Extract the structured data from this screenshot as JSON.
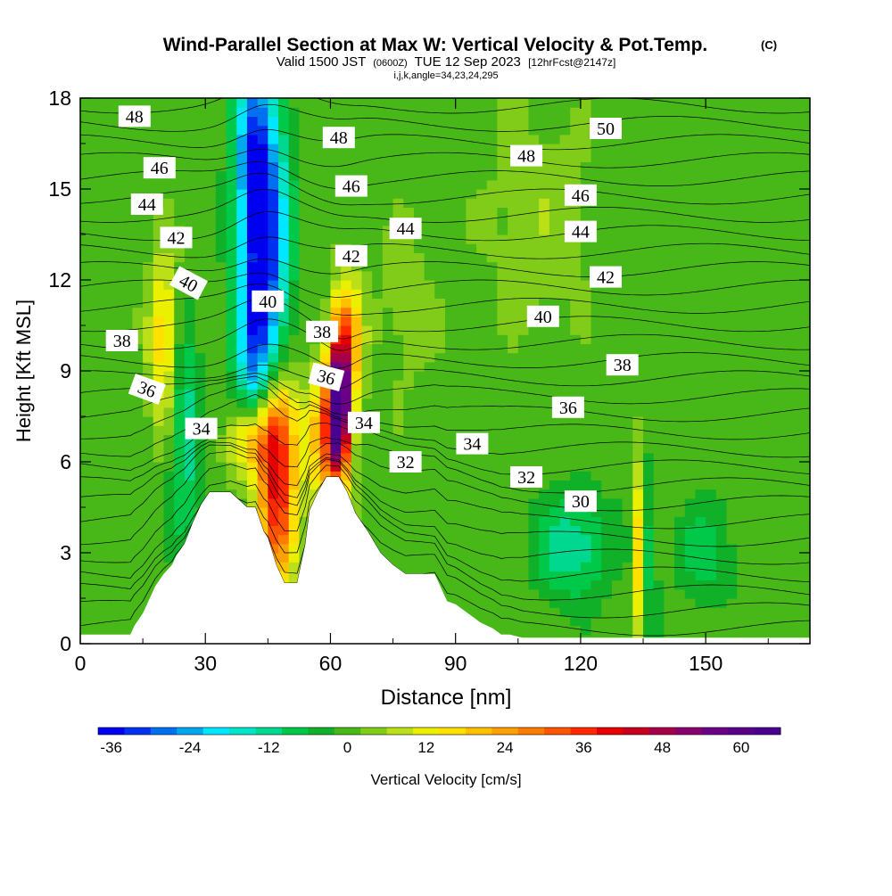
{
  "chart_data": {
    "type": "heatmap",
    "title": "Wind-Parallel Section at Max W: Vertical Velocity & Pot.Temp.",
    "title_mark": "(C)",
    "subtitle_valid": "Valid 1500 JST",
    "subtitle_utc": "(0600Z)",
    "subtitle_date": "TUE 12 Sep 2023",
    "subtitle_fcst": "[12hrFcst@2147z]",
    "subtitle_indices": "i,j,k,angle=34,23,24,295",
    "xlabel": "Distance [nm]",
    "ylabel": "Height [Kft MSL]",
    "xlim": [
      0,
      175
    ],
    "ylim": [
      0,
      18
    ],
    "x_ticks": [
      0,
      30,
      60,
      90,
      120,
      150
    ],
    "x_tick_labels": [
      "0",
      "30",
      "60",
      "90",
      "120",
      "150"
    ],
    "y_ticks": [
      0,
      3,
      6,
      9,
      12,
      15,
      18
    ],
    "y_tick_labels": [
      "0",
      "3",
      "6",
      "9",
      "12",
      "15",
      "18"
    ],
    "colorbar": {
      "label": "Vertical Velocity [cm/s]",
      "min": -36,
      "max": 68,
      "step": 4,
      "tick_values": [
        -36,
        -24,
        -12,
        0,
        12,
        24,
        36,
        48,
        60
      ],
      "tick_labels": [
        "-36",
        "-24",
        "-12",
        "0",
        "12",
        "24",
        "36",
        "48",
        "60"
      ],
      "colors": [
        "#0000f0",
        "#0030f0",
        "#0070f0",
        "#00a8f0",
        "#00e6ff",
        "#00e4c8",
        "#00d890",
        "#00c848",
        "#10b028",
        "#48b818",
        "#80cc18",
        "#bce018",
        "#eaf000",
        "#ffe000",
        "#ffc000",
        "#ffa000",
        "#ff7c00",
        "#ff5400",
        "#ff2800",
        "#e60000",
        "#c80020",
        "#a80048",
        "#88006c",
        "#6a0088",
        "#58008a",
        "#4a0090"
      ]
    },
    "terrain_profile": {
      "distance_nm": [
        0,
        12,
        13,
        15,
        16,
        18,
        20,
        22,
        23,
        25,
        27,
        29,
        31,
        33,
        36,
        40,
        42,
        44,
        45,
        47,
        49,
        52,
        54,
        55,
        57,
        59,
        60,
        62,
        64,
        66,
        69,
        72,
        75,
        78,
        82,
        85,
        88,
        90,
        93,
        96,
        99,
        101,
        103,
        106,
        108,
        175
      ],
      "height_kft": [
        0.3,
        0.3,
        0.6,
        1.0,
        1.3,
        1.9,
        2.3,
        2.6,
        2.9,
        3.3,
        4.0,
        4.6,
        5.0,
        5.0,
        5.0,
        4.5,
        4.5,
        3.7,
        3.5,
        2.6,
        2.0,
        2.0,
        3.3,
        4.4,
        5.0,
        5.5,
        5.5,
        5.5,
        5.0,
        4.3,
        3.7,
        3.0,
        2.6,
        2.3,
        2.3,
        2.3,
        1.4,
        1.3,
        1.0,
        0.7,
        0.5,
        0.3,
        0.3,
        0.2,
        0.2,
        0.2
      ]
    },
    "potential_temperature_labels": [
      {
        "text": "48",
        "x": 13,
        "y": 17.4,
        "angle": 0
      },
      {
        "text": "46",
        "x": 19,
        "y": 15.7,
        "angle": 0
      },
      {
        "text": "44",
        "x": 16,
        "y": 14.5,
        "angle": 0
      },
      {
        "text": "42",
        "x": 23,
        "y": 13.4,
        "angle": 0
      },
      {
        "text": "40",
        "x": 26,
        "y": 11.9,
        "angle": 28
      },
      {
        "text": "38",
        "x": 10,
        "y": 10.0,
        "angle": 0
      },
      {
        "text": "36",
        "x": 16,
        "y": 8.4,
        "angle": 20
      },
      {
        "text": "34",
        "x": 29,
        "y": 7.1,
        "angle": 0
      },
      {
        "text": "48",
        "x": 62,
        "y": 16.7,
        "angle": 0
      },
      {
        "text": "46",
        "x": 65,
        "y": 15.1,
        "angle": 0
      },
      {
        "text": "44",
        "x": 78,
        "y": 13.7,
        "angle": 0
      },
      {
        "text": "42",
        "x": 65,
        "y": 12.8,
        "angle": 0
      },
      {
        "text": "40",
        "x": 45,
        "y": 11.3,
        "angle": 0
      },
      {
        "text": "38",
        "x": 58,
        "y": 10.3,
        "angle": 0
      },
      {
        "text": "36",
        "x": 59,
        "y": 8.8,
        "angle": 15
      },
      {
        "text": "34",
        "x": 68,
        "y": 7.3,
        "angle": 0
      },
      {
        "text": "32",
        "x": 78,
        "y": 6.0,
        "angle": 0
      },
      {
        "text": "50",
        "x": 126,
        "y": 17.0,
        "angle": 0
      },
      {
        "text": "48",
        "x": 107,
        "y": 16.1,
        "angle": 0
      },
      {
        "text": "46",
        "x": 120,
        "y": 14.8,
        "angle": 0
      },
      {
        "text": "44",
        "x": 120,
        "y": 13.6,
        "angle": 0
      },
      {
        "text": "42",
        "x": 126,
        "y": 12.1,
        "angle": 0
      },
      {
        "text": "40",
        "x": 111,
        "y": 10.8,
        "angle": 0
      },
      {
        "text": "38",
        "x": 130,
        "y": 9.2,
        "angle": 0
      },
      {
        "text": "36",
        "x": 117,
        "y": 7.8,
        "angle": 0
      },
      {
        "text": "34",
        "x": 94,
        "y": 6.6,
        "angle": 0
      },
      {
        "text": "32",
        "x": 107,
        "y": 5.5,
        "angle": 0
      },
      {
        "text": "30",
        "x": 120,
        "y": 4.7,
        "angle": 0
      }
    ],
    "vertical_velocity_features": [
      {
        "name": "downdraft core aloft",
        "x": 44,
        "y": 13.2,
        "sx": 4,
        "sy": 3.5,
        "w": -36
      },
      {
        "name": "downdraft upper",
        "x": 41,
        "y": 16.5,
        "sx": 3,
        "sy": 2.2,
        "w": -16
      },
      {
        "name": "downdraft low",
        "x": 41,
        "y": 9.5,
        "sx": 3,
        "sy": 1.8,
        "w": -14
      },
      {
        "name": "left downdraft",
        "x": 25,
        "y": 7.0,
        "sx": 2.5,
        "sy": 2.5,
        "w": -14
      },
      {
        "name": "left updraft",
        "x": 20,
        "y": 10.0,
        "sx": 2.5,
        "sy": 2.0,
        "w": 18
      },
      {
        "name": "updraft core",
        "x": 62,
        "y": 7.8,
        "sx": 1.8,
        "sy": 1.5,
        "w": 64
      },
      {
        "name": "updraft upper",
        "x": 64,
        "y": 10.0,
        "sx": 2.5,
        "sy": 1.5,
        "w": 26
      },
      {
        "name": "updraft lower",
        "x": 59,
        "y": 6.8,
        "sx": 3.5,
        "sy": 1.6,
        "w": 24
      },
      {
        "name": "secondary updraft",
        "x": 47,
        "y": 5.0,
        "sx": 3.2,
        "sy": 2.2,
        "w": 40
      },
      {
        "name": "updraft shoulder",
        "x": 41,
        "y": 6.7,
        "sx": 4,
        "sy": 0.9,
        "w": 20
      },
      {
        "name": "updraft shelf",
        "x": 48,
        "y": 7.5,
        "sx": 3,
        "sy": 1.0,
        "w": 14
      },
      {
        "name": "low-level downdraft",
        "x": 118,
        "y": 3.2,
        "sx": 6,
        "sy": 1.2,
        "w": -14
      },
      {
        "name": "low-level downdraft east",
        "x": 150,
        "y": 3.0,
        "sx": 5,
        "sy": 1.2,
        "w": -8
      },
      {
        "name": "narrow updraft",
        "x": 133.5,
        "y": 3.0,
        "sx": 0.8,
        "sy": 2.0,
        "w": 18
      },
      {
        "name": "narrow downdraft",
        "x": 137,
        "y": 3.0,
        "sx": 1.0,
        "sy": 1.8,
        "w": -10
      },
      {
        "name": "weak lift",
        "x": 110,
        "y": 14.0,
        "sx": 9,
        "sy": 2.5,
        "w": 5
      },
      {
        "name": "weak lift 2",
        "x": 78,
        "y": 11.0,
        "sx": 5,
        "sy": 2.0,
        "w": 4
      }
    ]
  }
}
